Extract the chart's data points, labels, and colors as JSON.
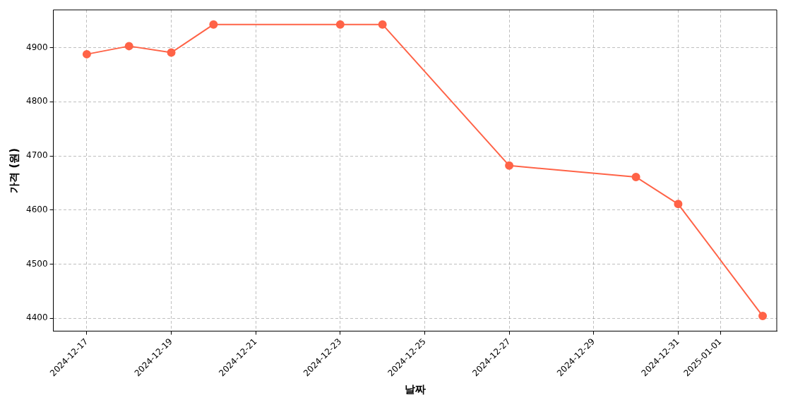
{
  "chart_data": {
    "type": "line",
    "xlabel": "날짜",
    "ylabel": "가격 (원)",
    "x": [
      "2024-12-17",
      "2024-12-18",
      "2024-12-19",
      "2024-12-20",
      "2024-12-23",
      "2024-12-24",
      "2024-12-27",
      "2024-12-30",
      "2024-12-31",
      "2025-01-02"
    ],
    "series": [
      {
        "color": "#ff6347",
        "values": [
          4888,
          4903,
          4891,
          4943,
          4943,
          4943,
          4682,
          4661,
          4611,
          4404
        ]
      }
    ],
    "xlim": [
      "2024-12-16T05:00",
      "2025-01-02T08:00"
    ],
    "xticks": [
      "2024-12-17",
      "2024-12-19",
      "2024-12-21",
      "2024-12-23",
      "2024-12-25",
      "2024-12-27",
      "2024-12-29",
      "2024-12-31",
      "2025-01-01"
    ],
    "ylim": [
      4376,
      4970
    ],
    "yticks": [
      4400,
      4500,
      4600,
      4700,
      4800,
      4900
    ],
    "grid": true,
    "legend": false,
    "marker": "circle",
    "line_style": "solid"
  }
}
